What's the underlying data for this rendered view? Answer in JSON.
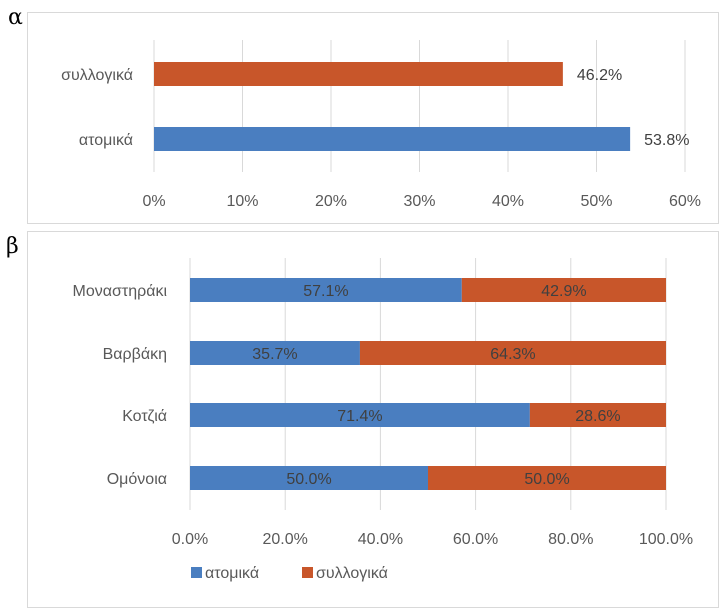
{
  "panels": {
    "a_letter": "α",
    "b_letter": "β"
  },
  "colors": {
    "blue": "#4a7ec0",
    "orange": "#c8562a",
    "grid": "#d9d9d9"
  },
  "chart_data": [
    {
      "type": "bar",
      "orientation": "horizontal",
      "categories": [
        "συλλογικά",
        "ατομικά"
      ],
      "values": [
        46.2,
        53.8
      ],
      "data_labels": [
        "46.2%",
        "53.8%"
      ],
      "bar_colors": [
        "#c8562a",
        "#4a7ec0"
      ],
      "xlim": [
        0,
        60
      ],
      "xticks": [
        "0%",
        "10%",
        "20%",
        "30%",
        "40%",
        "50%",
        "60%"
      ],
      "grid": true
    },
    {
      "type": "bar",
      "orientation": "horizontal",
      "stacked": true,
      "categories": [
        "Μοναστηράκι",
        "Βαρβάκη",
        "Κοτζιά",
        "Ομόνοια"
      ],
      "series": [
        {
          "name": "ατομικά",
          "color": "#4a7ec0",
          "values": [
            57.1,
            35.7,
            71.4,
            50.0
          ],
          "labels": [
            "57.1%",
            "35.7%",
            "71.4%",
            "50.0%"
          ]
        },
        {
          "name": "συλλογικά",
          "color": "#c8562a",
          "values": [
            42.9,
            64.3,
            28.6,
            50.0
          ],
          "labels": [
            "42.9%",
            "64.3%",
            "28.6%",
            "50.0%"
          ]
        }
      ],
      "xlim": [
        0,
        100
      ],
      "xticks": [
        "0.0%",
        "20.0%",
        "40.0%",
        "60.0%",
        "80.0%",
        "100.0%"
      ],
      "grid": true,
      "legend": "bottom-left"
    }
  ]
}
